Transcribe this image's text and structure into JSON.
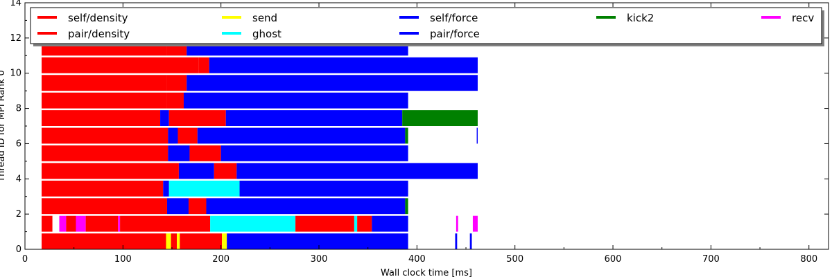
{
  "chart_data": {
    "type": "bar",
    "subtype": "task-timeline",
    "title": "",
    "xlabel": "Wall clock time [ms]",
    "ylabel": "Thread ID for MPI Rank 0",
    "xlim": [
      0,
      820
    ],
    "ylim": [
      0,
      14
    ],
    "x_ticks": [
      "0",
      "100",
      "200",
      "300",
      "400",
      "500",
      "600",
      "700",
      "800"
    ],
    "y_ticks": [
      "0",
      "2",
      "4",
      "6",
      "8",
      "10",
      "12",
      "14"
    ],
    "grid": false,
    "legend_position": "top",
    "legend": [
      {
        "key": "self_density",
        "label": "self/density",
        "color": "#ff0000"
      },
      {
        "key": "pair_density",
        "label": "pair/density",
        "color": "#ff0000"
      },
      {
        "key": "send",
        "label": "send",
        "color": "#ffff00"
      },
      {
        "key": "ghost",
        "label": "ghost",
        "color": "#00ffff"
      },
      {
        "key": "self_force",
        "label": "self/force",
        "color": "#0000ff"
      },
      {
        "key": "pair_force",
        "label": "pair/force",
        "color": "#0000ff"
      },
      {
        "key": "kick2",
        "label": "kick2",
        "color": "#008000"
      },
      {
        "key": "recv",
        "label": "recv",
        "color": "#ff00ff"
      }
    ],
    "threads": [
      {
        "thread": 0,
        "segments": [
          {
            "start": 17,
            "end": 144,
            "task": "self_density"
          },
          {
            "start": 144,
            "end": 149,
            "task": "send"
          },
          {
            "start": 149,
            "end": 155,
            "task": "pair_density"
          },
          {
            "start": 155,
            "end": 158,
            "task": "send"
          },
          {
            "start": 158,
            "end": 201,
            "task": "pair_density"
          },
          {
            "start": 201,
            "end": 206,
            "task": "send"
          },
          {
            "start": 206,
            "end": 391,
            "task": "pair_force"
          },
          {
            "start": 439,
            "end": 441,
            "task": "pair_force"
          },
          {
            "start": 454,
            "end": 456,
            "task": "pair_force"
          }
        ]
      },
      {
        "thread": 1,
        "segments": [
          {
            "start": 17,
            "end": 28,
            "task": "pair_density"
          },
          {
            "start": 35,
            "end": 42,
            "task": "recv"
          },
          {
            "start": 42,
            "end": 52,
            "task": "pair_density"
          },
          {
            "start": 52,
            "end": 62,
            "task": "recv"
          },
          {
            "start": 62,
            "end": 95,
            "task": "pair_density"
          },
          {
            "start": 95,
            "end": 97,
            "task": "recv"
          },
          {
            "start": 97,
            "end": 189,
            "task": "pair_density"
          },
          {
            "start": 189,
            "end": 276,
            "task": "ghost"
          },
          {
            "start": 276,
            "end": 336,
            "task": "pair_density"
          },
          {
            "start": 336,
            "end": 339,
            "task": "ghost"
          },
          {
            "start": 339,
            "end": 354,
            "task": "pair_density"
          },
          {
            "start": 354,
            "end": 391,
            "task": "pair_force"
          },
          {
            "start": 440,
            "end": 442,
            "task": "recv"
          },
          {
            "start": 457,
            "end": 462,
            "task": "recv"
          }
        ]
      },
      {
        "thread": 2,
        "segments": [
          {
            "start": 17,
            "end": 145,
            "task": "self_density"
          },
          {
            "start": 145,
            "end": 167,
            "task": "pair_force"
          },
          {
            "start": 167,
            "end": 185,
            "task": "pair_density"
          },
          {
            "start": 185,
            "end": 388,
            "task": "pair_force"
          },
          {
            "start": 388,
            "end": 391,
            "task": "kick2"
          }
        ]
      },
      {
        "thread": 3,
        "segments": [
          {
            "start": 17,
            "end": 141,
            "task": "self_density"
          },
          {
            "start": 141,
            "end": 147,
            "task": "pair_force"
          },
          {
            "start": 147,
            "end": 219,
            "task": "ghost"
          },
          {
            "start": 219,
            "end": 391,
            "task": "pair_force"
          }
        ]
      },
      {
        "thread": 4,
        "segments": [
          {
            "start": 17,
            "end": 157,
            "task": "self_density"
          },
          {
            "start": 157,
            "end": 193,
            "task": "pair_force"
          },
          {
            "start": 193,
            "end": 216,
            "task": "pair_density"
          },
          {
            "start": 216,
            "end": 462,
            "task": "pair_force"
          }
        ]
      },
      {
        "thread": 5,
        "segments": [
          {
            "start": 17,
            "end": 146,
            "task": "self_density"
          },
          {
            "start": 146,
            "end": 168,
            "task": "pair_force"
          },
          {
            "start": 168,
            "end": 200,
            "task": "pair_density"
          },
          {
            "start": 200,
            "end": 391,
            "task": "pair_force"
          }
        ]
      },
      {
        "thread": 6,
        "segments": [
          {
            "start": 17,
            "end": 146,
            "task": "self_density"
          },
          {
            "start": 146,
            "end": 156,
            "task": "pair_force"
          },
          {
            "start": 156,
            "end": 176,
            "task": "pair_density"
          },
          {
            "start": 176,
            "end": 388,
            "task": "pair_force"
          },
          {
            "start": 388,
            "end": 391,
            "task": "kick2"
          },
          {
            "start": 461,
            "end": 462,
            "task": "pair_force"
          }
        ]
      },
      {
        "thread": 7,
        "segments": [
          {
            "start": 17,
            "end": 138,
            "task": "self_density"
          },
          {
            "start": 138,
            "end": 147,
            "task": "pair_force"
          },
          {
            "start": 147,
            "end": 205,
            "task": "pair_density"
          },
          {
            "start": 205,
            "end": 385,
            "task": "pair_force"
          },
          {
            "start": 385,
            "end": 462,
            "task": "kick2"
          }
        ]
      },
      {
        "thread": 8,
        "segments": [
          {
            "start": 17,
            "end": 145,
            "task": "self_density"
          },
          {
            "start": 145,
            "end": 162,
            "task": "pair_density"
          },
          {
            "start": 162,
            "end": 391,
            "task": "pair_force"
          }
        ]
      },
      {
        "thread": 9,
        "segments": [
          {
            "start": 17,
            "end": 145,
            "task": "self_density"
          },
          {
            "start": 145,
            "end": 165,
            "task": "pair_density"
          },
          {
            "start": 165,
            "end": 462,
            "task": "pair_force"
          }
        ]
      },
      {
        "thread": 10,
        "segments": [
          {
            "start": 17,
            "end": 177,
            "task": "self_density"
          },
          {
            "start": 177,
            "end": 188,
            "task": "pair_density"
          },
          {
            "start": 188,
            "end": 462,
            "task": "pair_force"
          }
        ]
      },
      {
        "thread": 11,
        "segments": [
          {
            "start": 17,
            "end": 145,
            "task": "self_density"
          },
          {
            "start": 145,
            "end": 165,
            "task": "pair_density"
          },
          {
            "start": 165,
            "end": 391,
            "task": "pair_force"
          }
        ]
      }
    ]
  }
}
